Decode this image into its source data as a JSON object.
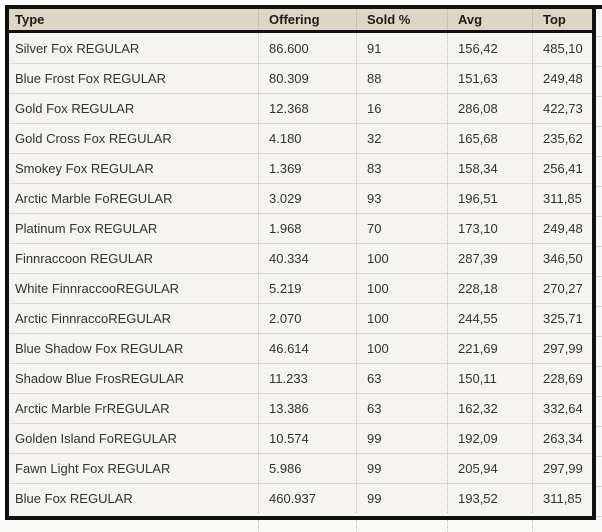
{
  "table": {
    "columns": [
      {
        "key": "type",
        "label": "Type"
      },
      {
        "key": "offering",
        "label": "Offering"
      },
      {
        "key": "sold_pct",
        "label": "Sold %"
      },
      {
        "key": "avg",
        "label": "Avg"
      },
      {
        "key": "top",
        "label": "Top"
      }
    ],
    "rows": [
      {
        "type": "Silver Fox REGULAR",
        "offering": "86.600",
        "sold_pct": "91",
        "avg": "156,42",
        "top": "485,10"
      },
      {
        "type": "Blue Frost Fox REGULAR",
        "offering": "80.309",
        "sold_pct": "88",
        "avg": "151,63",
        "top": "249,48"
      },
      {
        "type": "Gold Fox REGULAR",
        "offering": "12.368",
        "sold_pct": "16",
        "avg": "286,08",
        "top": "422,73"
      },
      {
        "type": "Gold Cross Fox REGULAR",
        "offering": "4.180",
        "sold_pct": "32",
        "avg": "165,68",
        "top": "235,62"
      },
      {
        "type": "Smokey Fox REGULAR",
        "offering": "1.369",
        "sold_pct": "83",
        "avg": "158,34",
        "top": "256,41"
      },
      {
        "type": "Arctic Marble FoREGULAR",
        "offering": "3.029",
        "sold_pct": "93",
        "avg": "196,51",
        "top": "311,85"
      },
      {
        "type": "Platinum Fox REGULAR",
        "offering": "1.968",
        "sold_pct": "70",
        "avg": "173,10",
        "top": "249,48"
      },
      {
        "type": "Finnraccoon REGULAR",
        "offering": "40.334",
        "sold_pct": "100",
        "avg": "287,39",
        "top": "346,50"
      },
      {
        "type": "White FinnraccooREGULAR",
        "offering": "5.219",
        "sold_pct": "100",
        "avg": "228,18",
        "top": "270,27"
      },
      {
        "type": "Arctic FinnraccoREGULAR",
        "offering": "2.070",
        "sold_pct": "100",
        "avg": "244,55",
        "top": "325,71"
      },
      {
        "type": "Blue Shadow Fox REGULAR",
        "offering": "46.614",
        "sold_pct": "100",
        "avg": "221,69",
        "top": "297,99"
      },
      {
        "type": "Shadow Blue FrosREGULAR",
        "offering": "11.233",
        "sold_pct": "63",
        "avg": "150,11",
        "top": "228,69"
      },
      {
        "type": "Arctic Marble FrREGULAR",
        "offering": "13.386",
        "sold_pct": "63",
        "avg": "162,32",
        "top": "332,64"
      },
      {
        "type": "Golden Island FoREGULAR",
        "offering": "10.574",
        "sold_pct": "99",
        "avg": "192,09",
        "top": "263,34"
      },
      {
        "type": "Fawn Light Fox REGULAR",
        "offering": "5.986",
        "sold_pct": "99",
        "avg": "205,94",
        "top": "297,99"
      },
      {
        "type": "Blue Fox REGULAR",
        "offering": "460.937",
        "sold_pct": "99",
        "avg": "193,52",
        "top": "311,85"
      }
    ]
  },
  "colors": {
    "frame_border": "#111111",
    "header_background": "#ded6c4",
    "header_text": "#1e1c18",
    "row_background": "#f5f4f1",
    "row_separator": "#d9d8d4",
    "column_separator": "#c2c0b8",
    "cell_text": "#323232",
    "page_background": "#ffffff"
  }
}
